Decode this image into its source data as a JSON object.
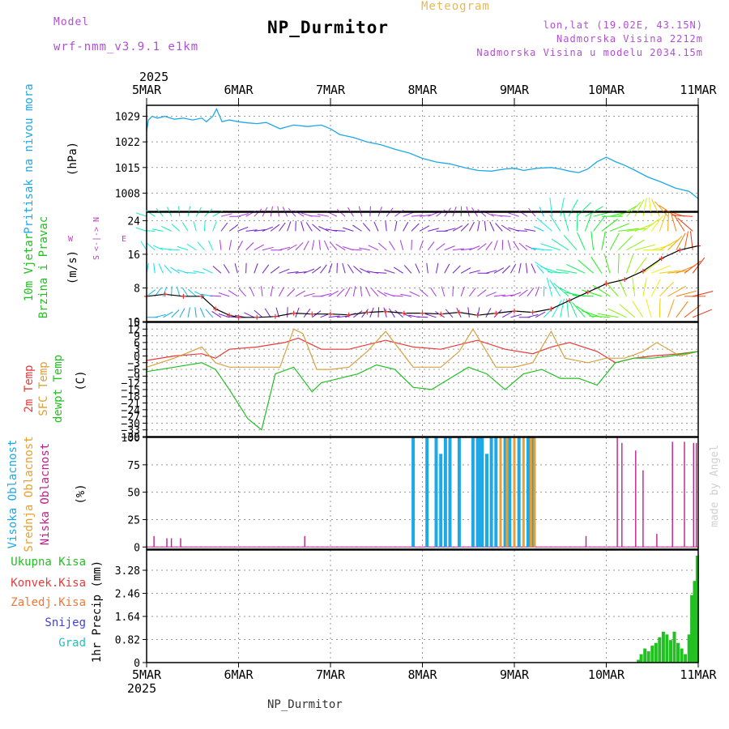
{
  "header": {
    "model_label": "Model",
    "model_name": "wrf-nmm_v3.9.1 e1km",
    "title": "NP_Durmitor",
    "subtitle": "Meteogram",
    "coords": "lon,lat (19.02E, 43.15N)",
    "elevation": "Nadmorska Visina 2212m",
    "elevation_model": "Nadmorska Visina u modelu 2034.15m",
    "footer": "NP_Durmitor",
    "credit": "made by Angel"
  },
  "time_axis": {
    "year": "2025",
    "labels": [
      "5MAR",
      "6MAR",
      "7MAR",
      "8MAR",
      "9MAR",
      "10MAR",
      "11MAR"
    ]
  },
  "panel_labels": {
    "pressure": [
      "Pritisak na nivou mora",
      "(hPa)"
    ],
    "wind": [
      "10m Vjetar",
      "Brzina i Pravac",
      "(m/s)"
    ],
    "compass": [
      "N",
      "<-|->",
      "S",
      "W",
      "E"
    ],
    "temp": [
      "2m Temp",
      "SFC Temp",
      "dewpt Temp",
      "(C)"
    ],
    "cloud": [
      "Visoka Oblacnost",
      "Srednja Oblacnost",
      "Niska Oblacnost",
      "(%)"
    ],
    "precip": [
      "Ukupna Kisa",
      "Konvek.Kisa",
      "Zaledj.Kisa",
      "Snijeg",
      "Grad",
      "1hr Precip (mm)"
    ]
  },
  "colors": {
    "pressure": "#1ea8e8",
    "t2m": "#e83a3a",
    "sfc": "#d8a040",
    "dewpt": "#22c022",
    "cloud_high": "#1ea8e8",
    "cloud_mid": "#e8a030",
    "cloud_low": "#c0208c",
    "precip_total": "#22c022",
    "convective": "#e83a3a",
    "freezing": "#f07838",
    "snow": "#4040e0",
    "hail": "#20c0c0",
    "header": "#b04fd0",
    "subtitle": "#e8b85a"
  },
  "chart_data": [
    {
      "type": "line",
      "name": "pressure",
      "ylabel": "(hPa)",
      "ylim": [
        1003,
        1032
      ],
      "yticks": [
        1008,
        1015,
        1022,
        1029
      ],
      "x_days": [
        0,
        0.02,
        0.06,
        0.12,
        0.2,
        0.3,
        0.4,
        0.5,
        0.6,
        0.65,
        0.72,
        0.76,
        0.82,
        0.9,
        1.0,
        1.1,
        1.2,
        1.3,
        1.45,
        1.6,
        1.75,
        1.9,
        2.0,
        2.1,
        2.25,
        2.4,
        2.55,
        2.7,
        2.85,
        3.0,
        3.15,
        3.3,
        3.45,
        3.6,
        3.75,
        3.9,
        4.0,
        4.1,
        4.25,
        4.4,
        4.5,
        4.6,
        4.7,
        4.8,
        4.9,
        5.0,
        5.1,
        5.2,
        5.3,
        5.45,
        5.6,
        5.75,
        5.9,
        6.0
      ],
      "values": [
        1025,
        1028,
        1029,
        1028.5,
        1029,
        1028.2,
        1028.5,
        1028,
        1028.5,
        1027.5,
        1029,
        1031,
        1027.5,
        1028,
        1027.5,
        1027.2,
        1027,
        1027.3,
        1025.6,
        1026.6,
        1026.2,
        1026.6,
        1025.6,
        1024,
        1023.2,
        1022,
        1021.2,
        1020,
        1019,
        1017.5,
        1016.5,
        1016,
        1015,
        1014.2,
        1014,
        1014.6,
        1014.8,
        1014.2,
        1014.8,
        1015,
        1014.6,
        1014,
        1013.6,
        1014.6,
        1016.6,
        1017.8,
        1016.6,
        1015.6,
        1014.4,
        1012.4,
        1011,
        1009.4,
        1008.5,
        1006.5
      ]
    },
    {
      "type": "line",
      "name": "10m wind speed",
      "ylabel": "(m/s)",
      "ylim": [
        0,
        26
      ],
      "yticks": [
        0,
        8,
        16,
        24
      ],
      "x_days": [
        0,
        0.2,
        0.4,
        0.6,
        0.75,
        0.9,
        1.0,
        1.2,
        1.4,
        1.6,
        1.8,
        2.0,
        2.2,
        2.4,
        2.6,
        2.8,
        3.0,
        3.2,
        3.4,
        3.6,
        3.8,
        4.0,
        4.2,
        4.4,
        4.6,
        4.8,
        5.0,
        5.2,
        5.4,
        5.6,
        5.8,
        6.0
      ],
      "values": [
        6,
        6.5,
        6,
        6,
        3,
        1.5,
        1,
        1,
        1.2,
        2,
        1.8,
        1.8,
        1.6,
        2.2,
        2.4,
        2,
        2,
        1.8,
        2.2,
        1.5,
        2,
        2.5,
        2.2,
        3,
        5,
        7,
        9,
        10,
        12,
        15,
        17,
        18
      ]
    },
    {
      "type": "line",
      "name": "temperature",
      "ylabel": "(C)",
      "ylim": [
        -36,
        15
      ],
      "yticks": [
        -36,
        -33,
        -30,
        -27,
        -24,
        -21,
        -18,
        -15,
        -12,
        -9,
        -6,
        -3,
        0,
        3,
        6,
        9,
        12,
        15
      ],
      "series": [
        {
          "name": "2m Temp",
          "x_days": [
            0,
            0.3,
            0.6,
            0.75,
            0.9,
            1.2,
            1.5,
            1.65,
            1.75,
            1.9,
            2.2,
            2.4,
            2.6,
            2.9,
            3.2,
            3.4,
            3.6,
            3.9,
            4.2,
            4.4,
            4.6,
            4.9,
            5.1,
            5.3,
            5.5,
            5.8,
            6.0
          ],
          "values": [
            -2,
            0,
            1,
            -1,
            3,
            4,
            6,
            8,
            6,
            3,
            3,
            5,
            7,
            4,
            3,
            5,
            7,
            3,
            1,
            4,
            6,
            2,
            -3,
            -1,
            0,
            1,
            2
          ]
        },
        {
          "name": "SFC Temp",
          "x_days": [
            0,
            0.3,
            0.6,
            0.75,
            0.9,
            1.2,
            1.45,
            1.6,
            1.7,
            1.85,
            2.0,
            2.2,
            2.4,
            2.6,
            2.9,
            3.2,
            3.4,
            3.55,
            3.8,
            4.0,
            4.2,
            4.4,
            4.55,
            4.8,
            5.0,
            5.2,
            5.4,
            5.55,
            5.8,
            6.0
          ],
          "values": [
            -5,
            -1,
            4,
            -3,
            -5,
            -5,
            -5,
            12,
            10,
            -6,
            -6,
            -5,
            2,
            11,
            -5,
            -5,
            2,
            12,
            -5,
            -5,
            -3,
            11,
            -1,
            -3,
            -1,
            -1,
            2,
            6,
            0,
            2
          ]
        },
        {
          "name": "dewpt Temp",
          "x_days": [
            0,
            0.3,
            0.6,
            0.75,
            0.9,
            1.1,
            1.25,
            1.4,
            1.6,
            1.8,
            1.9,
            2.1,
            2.3,
            2.5,
            2.7,
            2.9,
            3.1,
            3.3,
            3.5,
            3.7,
            3.9,
            4.1,
            4.3,
            4.5,
            4.7,
            4.9,
            5.1,
            5.3,
            5.5,
            5.7,
            6.0
          ],
          "values": [
            -7,
            -5,
            -3,
            -6,
            -15,
            -28,
            -33,
            -8,
            -5,
            -16,
            -12,
            -10,
            -8,
            -4,
            -6,
            -14,
            -15,
            -10,
            -5,
            -8,
            -15,
            -8,
            -6,
            -10,
            -10,
            -13,
            -3,
            -1,
            -1,
            0,
            2
          ]
        }
      ]
    },
    {
      "type": "bar",
      "name": "cloud cover",
      "ylabel": "(%)",
      "ylim": [
        0,
        100
      ],
      "yticks": [
        0,
        25,
        50,
        75,
        100
      ],
      "series": [
        {
          "name": "Visoka Oblacnost",
          "x_days": [
            2.9,
            3.05,
            3.15,
            3.2,
            3.25,
            3.3,
            3.4,
            3.55,
            3.6,
            3.62,
            3.65,
            3.7,
            3.75,
            3.8,
            3.9,
            3.95,
            4.05,
            4.15,
            4.2
          ],
          "values": [
            100,
            100,
            100,
            85,
            100,
            100,
            100,
            100,
            100,
            100,
            100,
            85,
            100,
            100,
            100,
            100,
            100,
            100,
            100
          ]
        },
        {
          "name": "Srednja Oblacnost",
          "x_days": [
            3.85,
            3.92,
            4.0,
            4.1,
            4.18,
            4.22
          ],
          "values": [
            100,
            100,
            100,
            100,
            100,
            100
          ]
        },
        {
          "name": "Niska Oblacnost",
          "x_days": [
            0.08,
            0.22,
            0.27,
            0.37,
            1.72,
            4.78,
            5.12,
            5.17,
            5.32,
            5.4,
            5.55,
            5.72,
            5.85,
            5.95,
            5.98
          ],
          "values": [
            10,
            8,
            8,
            8,
            10,
            10,
            100,
            95,
            88,
            70,
            12,
            96,
            96,
            95,
            95
          ]
        }
      ]
    },
    {
      "type": "bar",
      "name": "1hr precipitation",
      "ylabel": "1hr Precip (mm)",
      "ylim": [
        0,
        4.0
      ],
      "yticks": [
        0,
        0.82,
        1.64,
        2.46,
        3.28
      ],
      "x_days": [
        5.35,
        5.38,
        5.42,
        5.46,
        5.5,
        5.54,
        5.58,
        5.62,
        5.66,
        5.7,
        5.74,
        5.78,
        5.82,
        5.86,
        5.9,
        5.93,
        5.96,
        5.99
      ],
      "values": [
        0.1,
        0.3,
        0.5,
        0.4,
        0.6,
        0.7,
        0.9,
        1.1,
        1.0,
        0.8,
        1.1,
        0.7,
        0.5,
        0.3,
        1.0,
        2.4,
        2.9,
        3.8
      ]
    }
  ]
}
